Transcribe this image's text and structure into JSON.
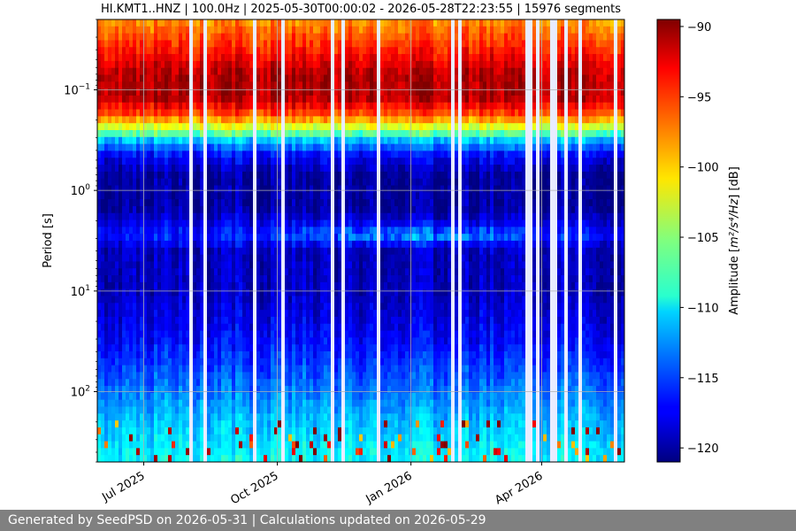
{
  "chart_data": {
    "type": "heatmap",
    "title": "HI.KMT1..HNZ | 100.0Hz | 2025-05-30T00:00:02 - 2026-05-28T22:23:55 | 15976 segments",
    "xlabel": "",
    "ylabel": "Period [s]",
    "y_scale": "log",
    "y_inverted": true,
    "xlim": [
      "2025-05-30",
      "2026-05-28"
    ],
    "ylim": [
      0.02,
      500
    ],
    "x_ticks": [
      {
        "date": "2025-07-01",
        "label": "Jul 2025"
      },
      {
        "date": "2025-10-01",
        "label": "Oct 2025"
      },
      {
        "date": "2026-01-01",
        "label": "Jan 2026"
      },
      {
        "date": "2026-04-01",
        "label": "Apr 2026"
      }
    ],
    "y_ticks": [
      {
        "value": 0.1,
        "base": "10",
        "exp": "−1"
      },
      {
        "value": 1,
        "base": "10",
        "exp": "0"
      },
      {
        "value": 10,
        "base": "10",
        "exp": "1"
      },
      {
        "value": 100,
        "base": "10",
        "exp": "2"
      }
    ],
    "grid": true,
    "colormap": "jet",
    "colorbar": {
      "label_prefix": "Amplitude [",
      "label_units": "m²/s⁴/Hz",
      "label_suffix": "] [dB]",
      "range": [
        -121,
        -89.5
      ],
      "ticks": [
        -90,
        -95,
        -100,
        -105,
        -110,
        -115,
        -120
      ],
      "tick_labels": [
        "−90",
        "−95",
        "−100",
        "−105",
        "−110",
        "−115",
        "−120"
      ]
    },
    "profile": [
      {
        "period": 0.02,
        "db": -98
      },
      {
        "period": 0.05,
        "db": -93
      },
      {
        "period": 0.07,
        "db": -91
      },
      {
        "period": 0.12,
        "db": -91
      },
      {
        "period": 0.18,
        "db": -96
      },
      {
        "period": 0.25,
        "db": -104
      },
      {
        "period": 0.32,
        "db": -111
      },
      {
        "period": 0.45,
        "db": -117
      },
      {
        "period": 0.7,
        "db": -120
      },
      {
        "period": 1.5,
        "db": -120
      },
      {
        "period": 2.8,
        "db": -116
      },
      {
        "period": 4,
        "db": -119
      },
      {
        "period": 10,
        "db": -119
      },
      {
        "period": 30,
        "db": -117
      },
      {
        "period": 80,
        "db": -114
      },
      {
        "period": 200,
        "db": -111
      },
      {
        "period": 500,
        "db": -109
      }
    ]
  },
  "footer": {
    "text": "Generated by SeedPSD on 2026-05-31 | Calculations updated on 2026-05-29"
  }
}
